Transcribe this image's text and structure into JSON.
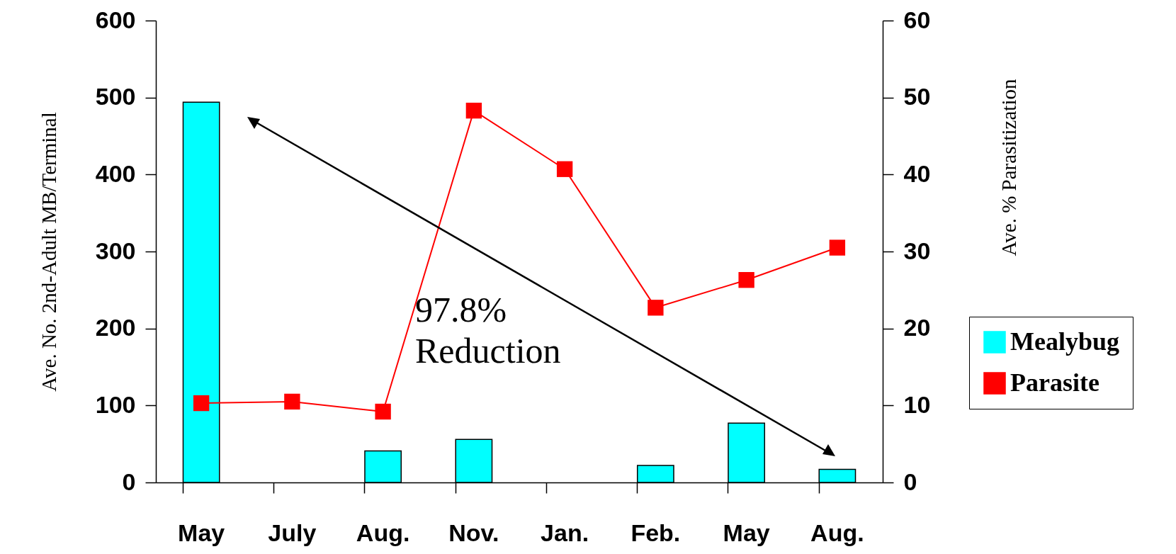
{
  "chart_data": {
    "type": "bar",
    "ylabel": "Ave. No. 2nd-Adult MB/Terminal",
    "y2label": "Ave.  %  Parasitization",
    "categories": [
      "May",
      "July",
      "Aug.",
      "Nov.",
      "Jan.",
      "Feb.",
      "May",
      "Aug."
    ],
    "series": [
      {
        "name": "Mealybug",
        "color": "#00ffff",
        "values": [
          494,
          null,
          41,
          56,
          null,
          22,
          77,
          17
        ]
      },
      {
        "name": "Parasite",
        "type": "line",
        "axis": "y2",
        "color": "#ff0000",
        "values": [
          10.3,
          10.5,
          9.2,
          48.3,
          40.7,
          22.7,
          26.3,
          30.5
        ]
      }
    ],
    "ylim": [
      0,
      600
    ],
    "yticks": [
      0,
      100,
      200,
      300,
      400,
      500,
      600
    ],
    "y2lim": [
      0,
      60
    ],
    "y2ticks": [
      0,
      10,
      20,
      30,
      40,
      50,
      60
    ],
    "annotations": [
      "97.8%\nReduction"
    ],
    "legend": "right",
    "marker": "square",
    "grid": false
  }
}
